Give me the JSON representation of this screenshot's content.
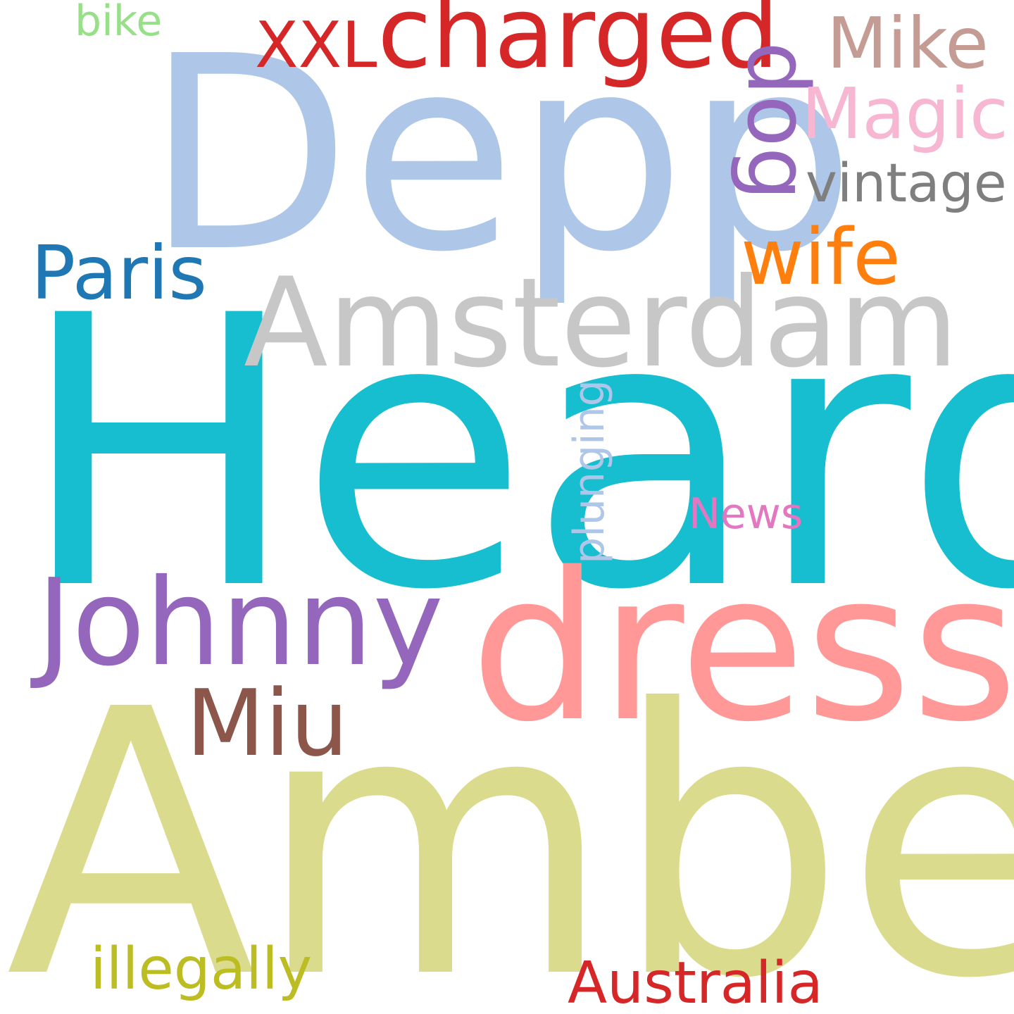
{
  "words": {
    "heard": {
      "text": "Heard",
      "color": "#17becf"
    },
    "amber": {
      "text": "Amber",
      "color": "#dbdb8d"
    },
    "depp": {
      "text": "Depp",
      "color": "#aec7e8"
    },
    "dress": {
      "text": "dress",
      "color": "#ff9896"
    },
    "amsterdam": {
      "text": "Amsterdam",
      "color": "#c7c7c7"
    },
    "johnny": {
      "text": "Johnny",
      "color": "#9467bd"
    },
    "charged": {
      "text": "charged",
      "color": "#d62728"
    },
    "miu": {
      "text": "Miu",
      "color": "#8c564b"
    },
    "paris": {
      "text": "Paris",
      "color": "#1f77b4"
    },
    "wife": {
      "text": "wife",
      "color": "#ff7f0e"
    },
    "dog": {
      "text": "dog",
      "color": "#9467bd"
    },
    "magic": {
      "text": "Magic",
      "color": "#f7b6d2"
    },
    "mike": {
      "text": "Mike",
      "color": "#c49c94"
    },
    "xxl": {
      "text": "XXL",
      "color": "#d62728"
    },
    "vintage": {
      "text": "vintage",
      "color": "#7f7f7f"
    },
    "australia": {
      "text": "Australia",
      "color": "#d62728"
    },
    "illegally": {
      "text": "illegally",
      "color": "#bcbd22"
    },
    "plunging": {
      "text": "plunging",
      "color": "#aec7e8"
    },
    "news": {
      "text": "News",
      "color": "#e377c2"
    },
    "bike": {
      "text": "bike",
      "color": "#98df8a"
    }
  }
}
